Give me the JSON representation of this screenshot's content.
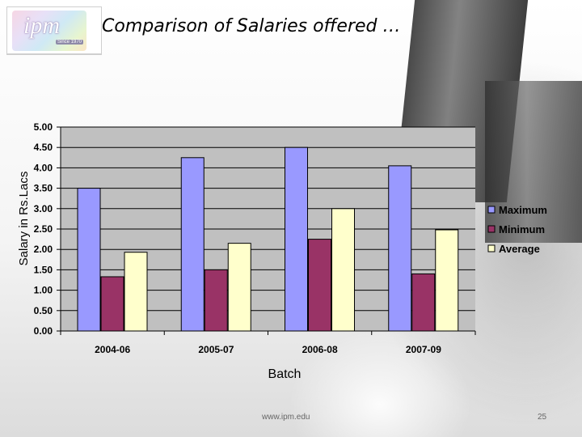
{
  "title": "Comparison of Salaries offered …",
  "logo": {
    "text": "ipm",
    "subtext": "Since 1970"
  },
  "footer": {
    "url": "www.ipm.edu",
    "page": "25"
  },
  "chart_data": {
    "type": "bar",
    "categories": [
      "2004-06",
      "2005-07",
      "2006-08",
      "2007-09"
    ],
    "series": [
      {
        "name": "Maximum",
        "values": [
          3.5,
          4.25,
          4.5,
          4.05
        ],
        "color": "#9999ff"
      },
      {
        "name": "Minimum",
        "values": [
          1.33,
          1.5,
          2.25,
          1.4
        ],
        "color": "#993366"
      },
      {
        "name": "Average",
        "values": [
          1.93,
          2.15,
          3.0,
          2.48
        ],
        "color": "#ffffcc"
      }
    ],
    "xlabel": "Batch",
    "ylabel": "Salary in Rs.Lacs",
    "ylim": [
      0,
      5
    ],
    "yticks": [
      "0.00",
      "0.50",
      "1.00",
      "1.50",
      "2.00",
      "2.50",
      "3.00",
      "3.50",
      "4.00",
      "4.50",
      "5.00"
    ],
    "plot_background": "#c0c0c0",
    "grid": true,
    "legend_position": "right"
  }
}
